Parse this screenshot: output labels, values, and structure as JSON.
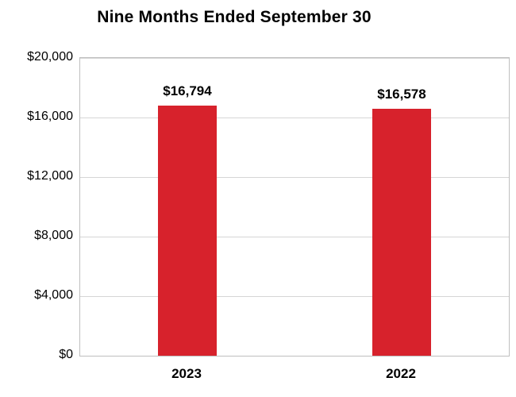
{
  "chart_data": {
    "type": "bar",
    "title": "Nine Months Ended September 30",
    "categories": [
      "2023",
      "2022"
    ],
    "values": [
      16794,
      16578
    ],
    "value_labels": [
      "$16,794",
      "$16,578"
    ],
    "xlabel": "",
    "ylabel": "",
    "ylim": [
      0,
      20000
    ],
    "yticks": [
      0,
      4000,
      8000,
      12000,
      16000,
      20000
    ],
    "ytick_labels": [
      "$0",
      "$4,000",
      "$8,000",
      "$12,000",
      "$16,000",
      "$20,000"
    ],
    "bar_color": "#d7222c",
    "grid": true,
    "legend_position": "none"
  }
}
